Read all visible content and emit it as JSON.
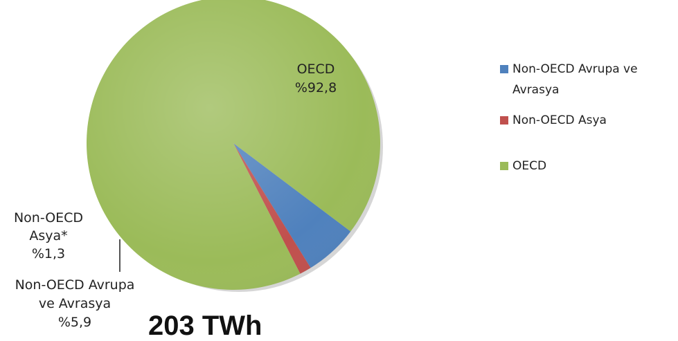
{
  "chart_data": {
    "type": "pie",
    "title": "203 TWh",
    "slices": [
      {
        "name": "Non-OECD Avrupa ve Avrasya",
        "label_lines": [
          "Non-OECD Avrupa",
          "ve Avrasya",
          "%5,9"
        ],
        "value": 5.9,
        "color": "#4f81bd"
      },
      {
        "name": "Non-OECD Asya",
        "label_lines": [
          "Non-OECD",
          "Asya*",
          "%1,3"
        ],
        "value": 1.3,
        "color": "#c0504d"
      },
      {
        "name": "OECD",
        "label_lines": [
          "OECD",
          "%92,8"
        ],
        "value": 92.8,
        "color": "#9bbb59"
      }
    ],
    "legend": {
      "placement": "right",
      "entries": [
        "Non-OECD Avrupa ve Avrasya",
        "Non-OECD Asya",
        "OECD"
      ]
    }
  }
}
